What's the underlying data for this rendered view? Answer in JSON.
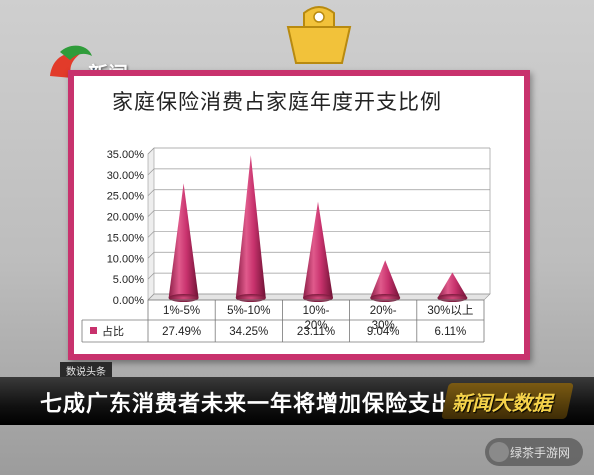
{
  "logo": {
    "text": "新闻"
  },
  "ticker": {
    "label": "数说头条"
  },
  "headline": {
    "text": "七成广东消费者未来一年将增加保险支出"
  },
  "brand": {
    "text": "新闻大数据"
  },
  "watermark": {
    "text": "绿茶手游网"
  },
  "colors": {
    "accent": "#c8326d",
    "cone": "#c8326d",
    "gridline": "#999999"
  },
  "chart_data": {
    "type": "bar",
    "title": "家庭保险消费占家庭年度开支比例",
    "categories": [
      "1%-5%",
      "5%-10%",
      "10%-20%",
      "20%-30%",
      "30%以上"
    ],
    "category_lines": [
      [
        "1%-5%"
      ],
      [
        "5%-10%"
      ],
      [
        "10%-",
        "20%"
      ],
      [
        "20%-",
        "30%"
      ],
      [
        "30%以上"
      ]
    ],
    "series": [
      {
        "name": "占比",
        "values": [
          27.49,
          34.25,
          23.11,
          9.04,
          6.11
        ]
      }
    ],
    "value_labels": [
      "27.49%",
      "34.25%",
      "23.11%",
      "9.04%",
      "6.11%"
    ],
    "yticks": [
      "0.00%",
      "5.00%",
      "10.00%",
      "15.00%",
      "20.00%",
      "25.00%",
      "30.00%",
      "35.00%"
    ],
    "ylim": [
      0,
      35
    ],
    "grid": true,
    "legend": "data-table",
    "shape": "cone"
  }
}
